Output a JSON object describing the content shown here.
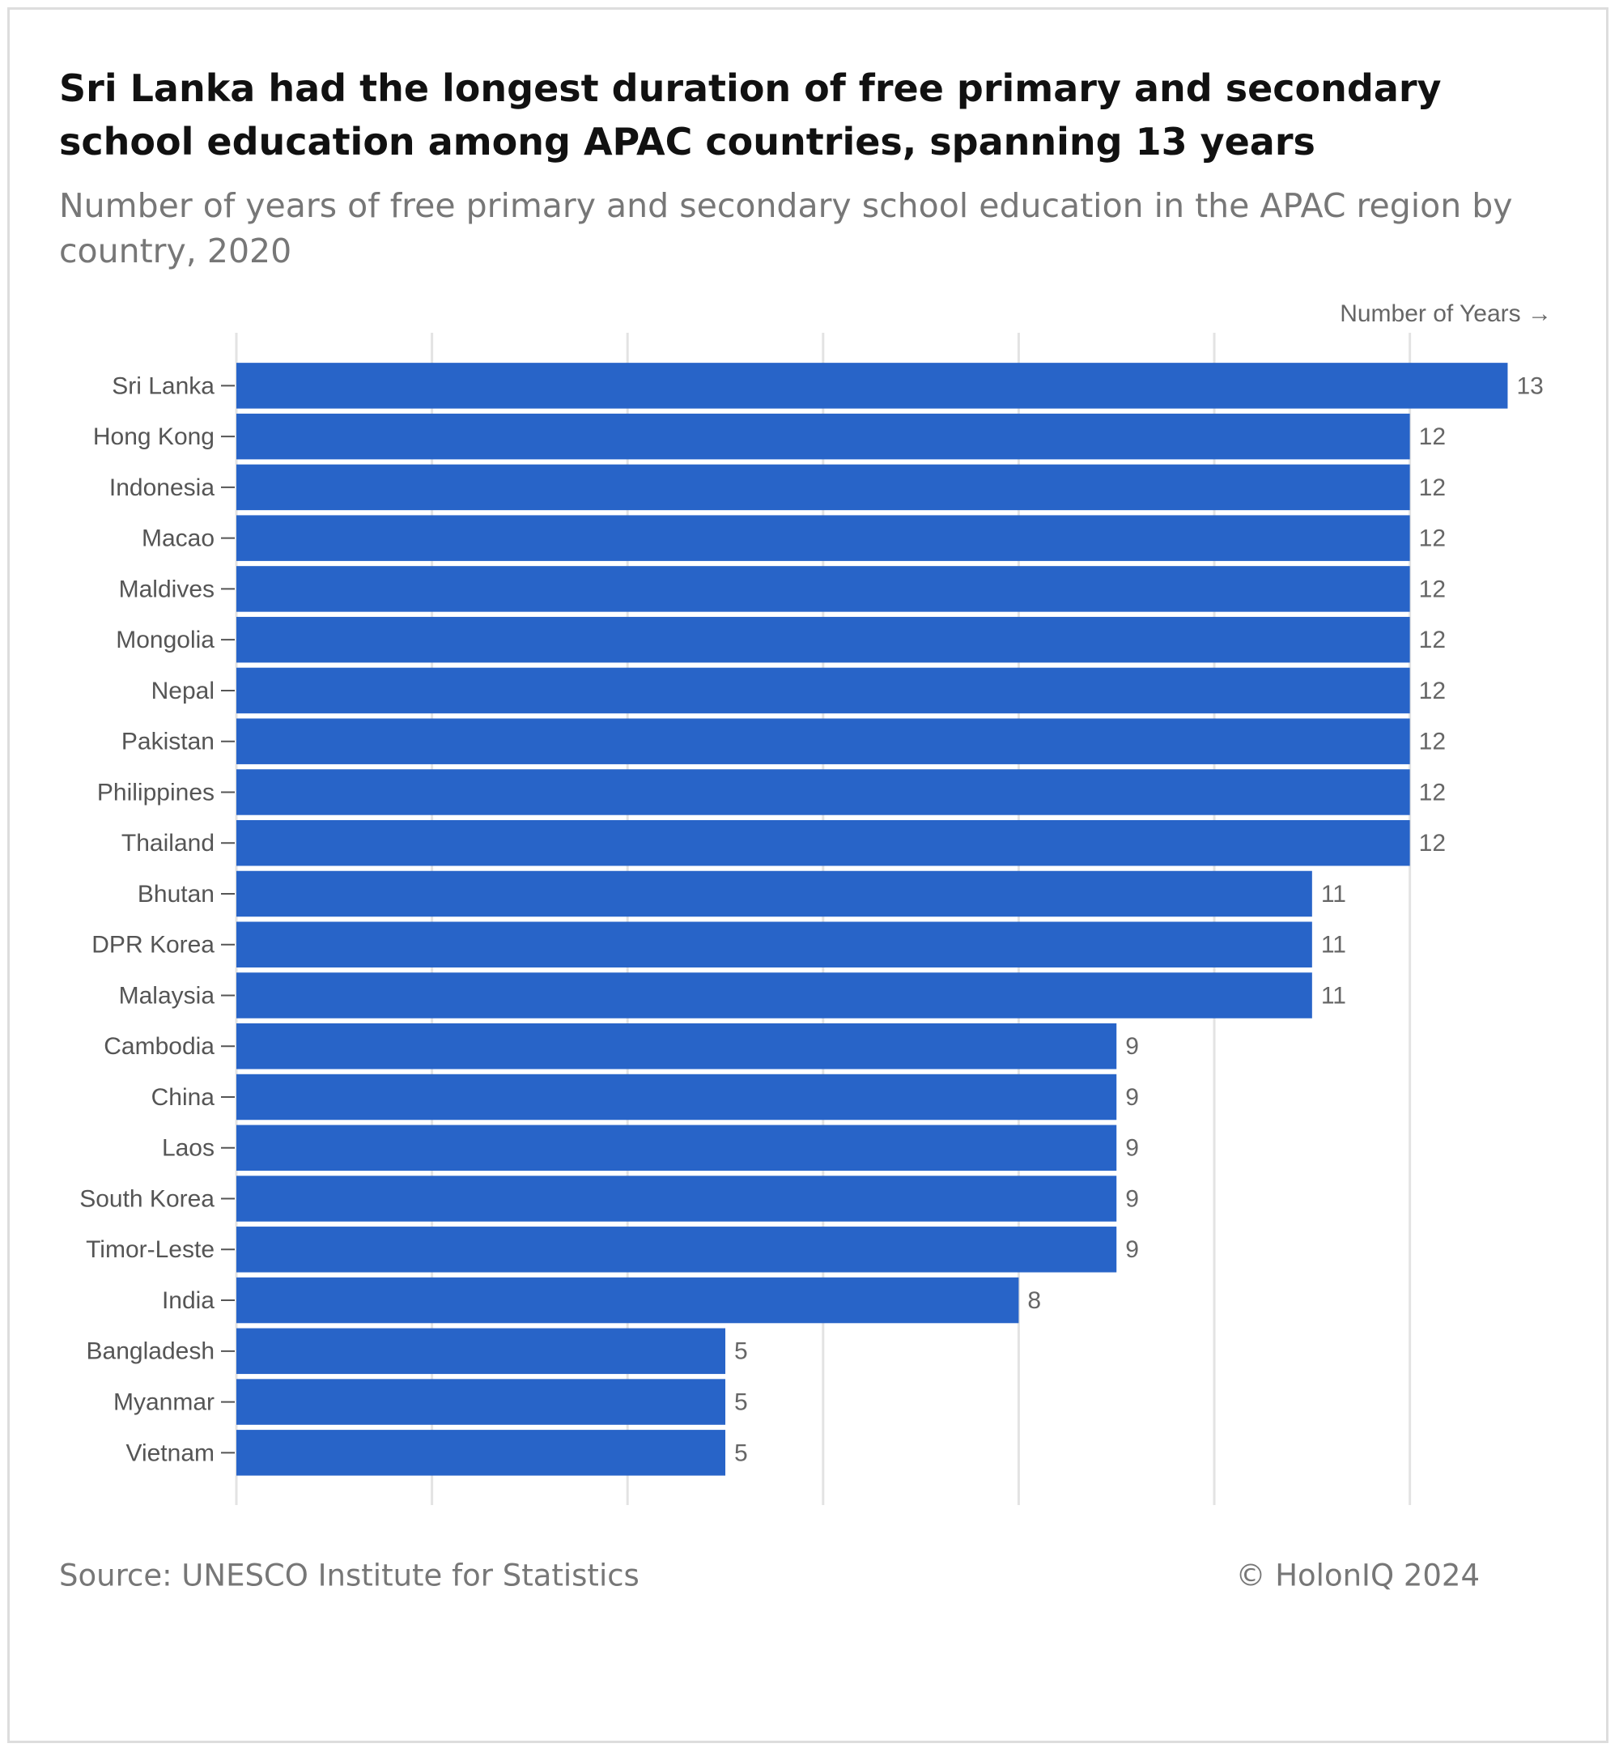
{
  "chart_data": {
    "type": "bar",
    "orientation": "horizontal",
    "title": "Sri Lanka had the longest duration of free primary and secondary school education among APAC countries, spanning 13 years",
    "subtitle": "Number of years of free primary and secondary school education in the APAC region by country, 2020",
    "x_axis_label": "Number of Years →",
    "categories": [
      "Sri Lanka",
      "Hong Kong",
      "Indonesia",
      "Macao",
      "Maldives",
      "Mongolia",
      "Nepal",
      "Pakistan",
      "Philippines",
      "Thailand",
      "Bhutan",
      "DPR Korea",
      "Malaysia",
      "Cambodia",
      "China",
      "Laos",
      "South Korea",
      "Timor-Leste",
      "India",
      "Bangladesh",
      "Myanmar",
      "Vietnam"
    ],
    "values": [
      13,
      12,
      12,
      12,
      12,
      12,
      12,
      12,
      12,
      12,
      11,
      11,
      11,
      9,
      9,
      9,
      9,
      9,
      8,
      5,
      5,
      5
    ],
    "color": "#2864c8",
    "xlim": [
      0,
      13
    ],
    "xticks": [
      0,
      2,
      4,
      6,
      8,
      10,
      12
    ],
    "grid": true,
    "source": "Source: UNESCO Institute for Statistics",
    "credit": "© HolonIQ 2024"
  }
}
